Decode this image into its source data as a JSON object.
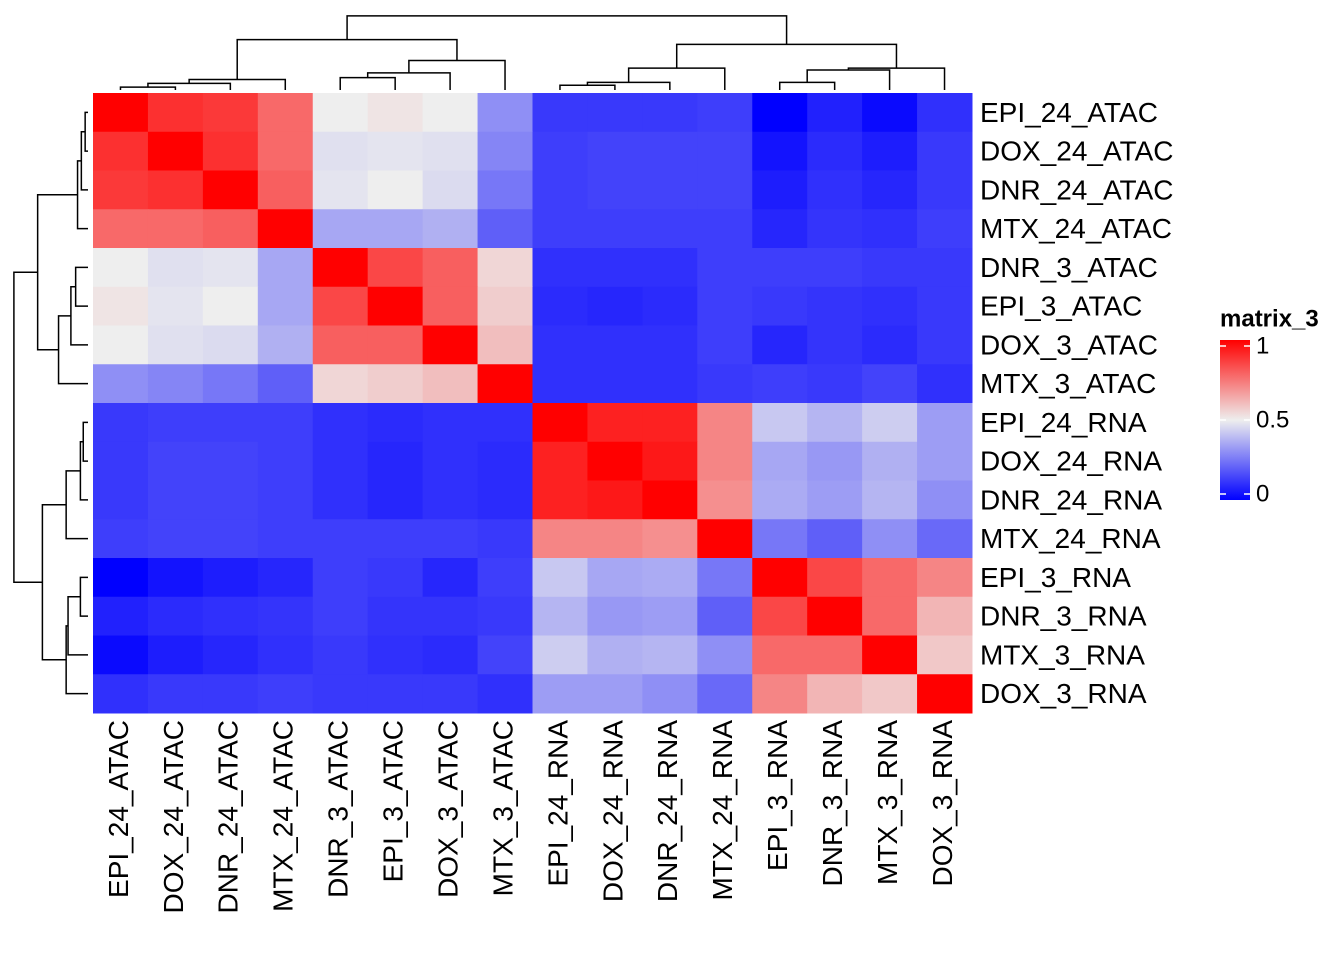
{
  "chart_data": {
    "type": "heatmap",
    "rows": [
      "EPI_24_ATAC",
      "DOX_24_ATAC",
      "DNR_24_ATAC",
      "MTX_24_ATAC",
      "DNR_3_ATAC",
      "EPI_3_ATAC",
      "DOX_3_ATAC",
      "MTX_3_ATAC",
      "EPI_24_RNA",
      "DOX_24_RNA",
      "DNR_24_RNA",
      "MTX_24_RNA",
      "EPI_3_RNA",
      "DNR_3_RNA",
      "MTX_3_RNA",
      "DOX_3_RNA"
    ],
    "columns": [
      "EPI_24_ATAC",
      "DOX_24_ATAC",
      "DNR_24_ATAC",
      "MTX_24_ATAC",
      "DNR_3_ATAC",
      "EPI_3_ATAC",
      "DOX_3_ATAC",
      "MTX_3_ATAC",
      "EPI_24_RNA",
      "DOX_24_RNA",
      "DNR_24_RNA",
      "MTX_24_RNA",
      "EPI_3_RNA",
      "DNR_3_RNA",
      "MTX_3_RNA",
      "DOX_3_RNA"
    ],
    "values": [
      [
        1,
        0.9,
        0.88,
        0.78,
        0.5,
        0.52,
        0.5,
        0.3,
        0.12,
        0.12,
        0.12,
        0.13,
        0.0,
        0.07,
        0.02,
        0.1
      ],
      [
        0.9,
        1,
        0.9,
        0.78,
        0.47,
        0.48,
        0.47,
        0.28,
        0.13,
        0.14,
        0.14,
        0.14,
        0.04,
        0.09,
        0.06,
        0.12
      ],
      [
        0.88,
        0.9,
        1,
        0.8,
        0.48,
        0.5,
        0.46,
        0.25,
        0.13,
        0.14,
        0.14,
        0.14,
        0.06,
        0.1,
        0.08,
        0.12
      ],
      [
        0.78,
        0.78,
        0.8,
        1,
        0.35,
        0.35,
        0.37,
        0.2,
        0.13,
        0.13,
        0.13,
        0.13,
        0.08,
        0.11,
        0.1,
        0.13
      ],
      [
        0.5,
        0.47,
        0.48,
        0.35,
        1,
        0.85,
        0.8,
        0.55,
        0.1,
        0.1,
        0.1,
        0.13,
        0.13,
        0.13,
        0.12,
        0.12
      ],
      [
        0.52,
        0.48,
        0.5,
        0.35,
        0.85,
        1,
        0.8,
        0.57,
        0.09,
        0.08,
        0.09,
        0.13,
        0.12,
        0.11,
        0.1,
        0.12
      ],
      [
        0.5,
        0.47,
        0.46,
        0.37,
        0.8,
        0.8,
        1,
        0.6,
        0.1,
        0.1,
        0.1,
        0.13,
        0.08,
        0.11,
        0.09,
        0.12
      ],
      [
        0.3,
        0.28,
        0.25,
        0.2,
        0.55,
        0.57,
        0.6,
        1,
        0.1,
        0.1,
        0.1,
        0.12,
        0.13,
        0.12,
        0.14,
        0.1
      ],
      [
        0.12,
        0.13,
        0.13,
        0.13,
        0.1,
        0.09,
        0.1,
        0.1,
        1,
        0.93,
        0.93,
        0.72,
        0.42,
        0.38,
        0.43,
        0.33
      ],
      [
        0.12,
        0.14,
        0.14,
        0.13,
        0.1,
        0.08,
        0.1,
        0.09,
        0.93,
        1,
        0.95,
        0.72,
        0.35,
        0.32,
        0.37,
        0.33
      ],
      [
        0.12,
        0.14,
        0.14,
        0.13,
        0.1,
        0.08,
        0.1,
        0.09,
        0.93,
        0.95,
        1,
        0.7,
        0.36,
        0.33,
        0.38,
        0.3
      ],
      [
        0.13,
        0.14,
        0.14,
        0.13,
        0.13,
        0.13,
        0.13,
        0.12,
        0.72,
        0.72,
        0.7,
        1,
        0.25,
        0.2,
        0.3,
        0.22
      ],
      [
        0.0,
        0.04,
        0.06,
        0.08,
        0.13,
        0.12,
        0.08,
        0.13,
        0.42,
        0.35,
        0.36,
        0.25,
        1,
        0.85,
        0.78,
        0.72
      ],
      [
        0.07,
        0.09,
        0.1,
        0.11,
        0.13,
        0.11,
        0.11,
        0.12,
        0.38,
        0.32,
        0.33,
        0.2,
        0.85,
        1,
        0.78,
        0.62
      ],
      [
        0.02,
        0.06,
        0.08,
        0.1,
        0.12,
        0.1,
        0.09,
        0.14,
        0.43,
        0.37,
        0.38,
        0.3,
        0.78,
        0.78,
        1,
        0.58
      ],
      [
        0.1,
        0.12,
        0.12,
        0.13,
        0.12,
        0.12,
        0.12,
        0.1,
        0.33,
        0.33,
        0.3,
        0.22,
        0.72,
        0.62,
        0.58,
        1
      ]
    ],
    "legend_title": "matrix_3",
    "zlim": [
      0,
      1
    ],
    "zticks": [
      0,
      0.5,
      1
    ],
    "colors": [
      "#0000ff",
      "#eeeeee",
      "#ff0000"
    ]
  }
}
